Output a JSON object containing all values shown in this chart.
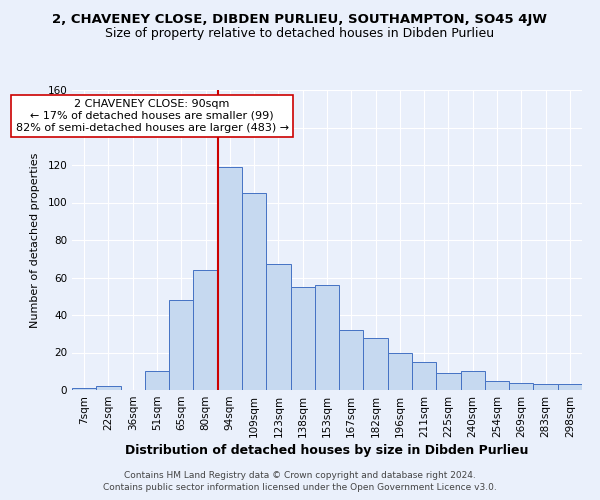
{
  "title": "2, CHAVENEY CLOSE, DIBDEN PURLIEU, SOUTHAMPTON, SO45 4JW",
  "subtitle": "Size of property relative to detached houses in Dibden Purlieu",
  "xlabel": "Distribution of detached houses by size in Dibden Purlieu",
  "ylabel": "Number of detached properties",
  "footer1": "Contains HM Land Registry data © Crown copyright and database right 2024.",
  "footer2": "Contains public sector information licensed under the Open Government Licence v3.0.",
  "annotation_line1": "2 CHAVENEY CLOSE: 90sqm",
  "annotation_line2": "← 17% of detached houses are smaller (99)",
  "annotation_line3": "82% of semi-detached houses are larger (483) →",
  "bar_labels": [
    "7sqm",
    "22sqm",
    "36sqm",
    "51sqm",
    "65sqm",
    "80sqm",
    "94sqm",
    "109sqm",
    "123sqm",
    "138sqm",
    "153sqm",
    "167sqm",
    "182sqm",
    "196sqm",
    "211sqm",
    "225sqm",
    "240sqm",
    "254sqm",
    "269sqm",
    "283sqm",
    "298sqm"
  ],
  "bar_values": [
    1,
    2,
    0,
    10,
    48,
    64,
    119,
    105,
    67,
    55,
    56,
    32,
    28,
    20,
    15,
    9,
    10,
    5,
    4,
    3,
    3
  ],
  "bar_color": "#c6d9f0",
  "bar_edge_color": "#4472c4",
  "vline_color": "#cc0000",
  "vline_idx": 6,
  "ylim": [
    0,
    160
  ],
  "yticks": [
    0,
    20,
    40,
    60,
    80,
    100,
    120,
    140,
    160
  ],
  "bg_color": "#eaf0fb",
  "grid_color": "#ffffff",
  "annotation_box_color": "#ffffff",
  "annotation_box_edge": "#cc0000",
  "title_fontsize": 9.5,
  "subtitle_fontsize": 9,
  "xlabel_fontsize": 9,
  "ylabel_fontsize": 8,
  "tick_fontsize": 7.5,
  "annotation_fontsize": 8
}
